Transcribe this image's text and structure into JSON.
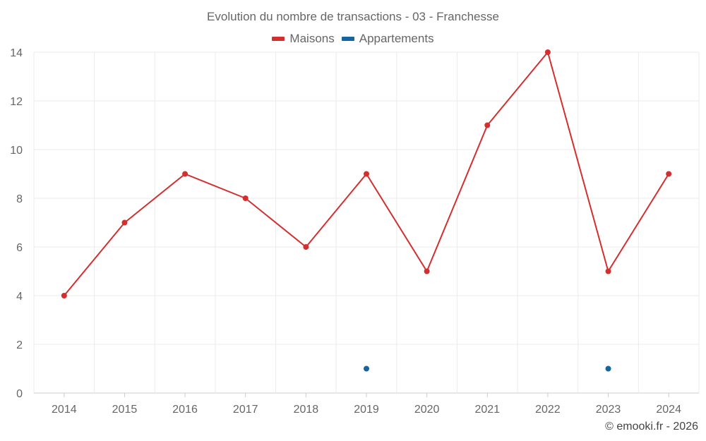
{
  "colors": {
    "maisons": "#d32f2f",
    "appartements": "#1565a0",
    "grid": "#ebebeb",
    "axis": "#cccccc"
  },
  "chart_data": {
    "type": "line",
    "title": "Evolution du nombre de transactions - 03 - Franchesse",
    "x": [
      "2014",
      "2015",
      "2016",
      "2017",
      "2018",
      "2019",
      "2020",
      "2021",
      "2022",
      "2023",
      "2024"
    ],
    "yticks": [
      "0",
      "2",
      "4",
      "6",
      "8",
      "10",
      "12",
      "14"
    ],
    "ylim": [
      0,
      14
    ],
    "grid": true,
    "legend_position": "top-center",
    "series": [
      {
        "name": "Maisons",
        "color": "#d32f2f",
        "values": [
          4,
          7,
          9,
          8,
          6,
          9,
          5,
          11,
          14,
          5,
          9
        ]
      },
      {
        "name": "Appartements",
        "color": "#1565a0",
        "values": [
          null,
          null,
          null,
          null,
          null,
          1,
          null,
          null,
          null,
          1,
          null
        ]
      }
    ]
  },
  "footer": {
    "credit": "© emooki.fr - 2026"
  }
}
